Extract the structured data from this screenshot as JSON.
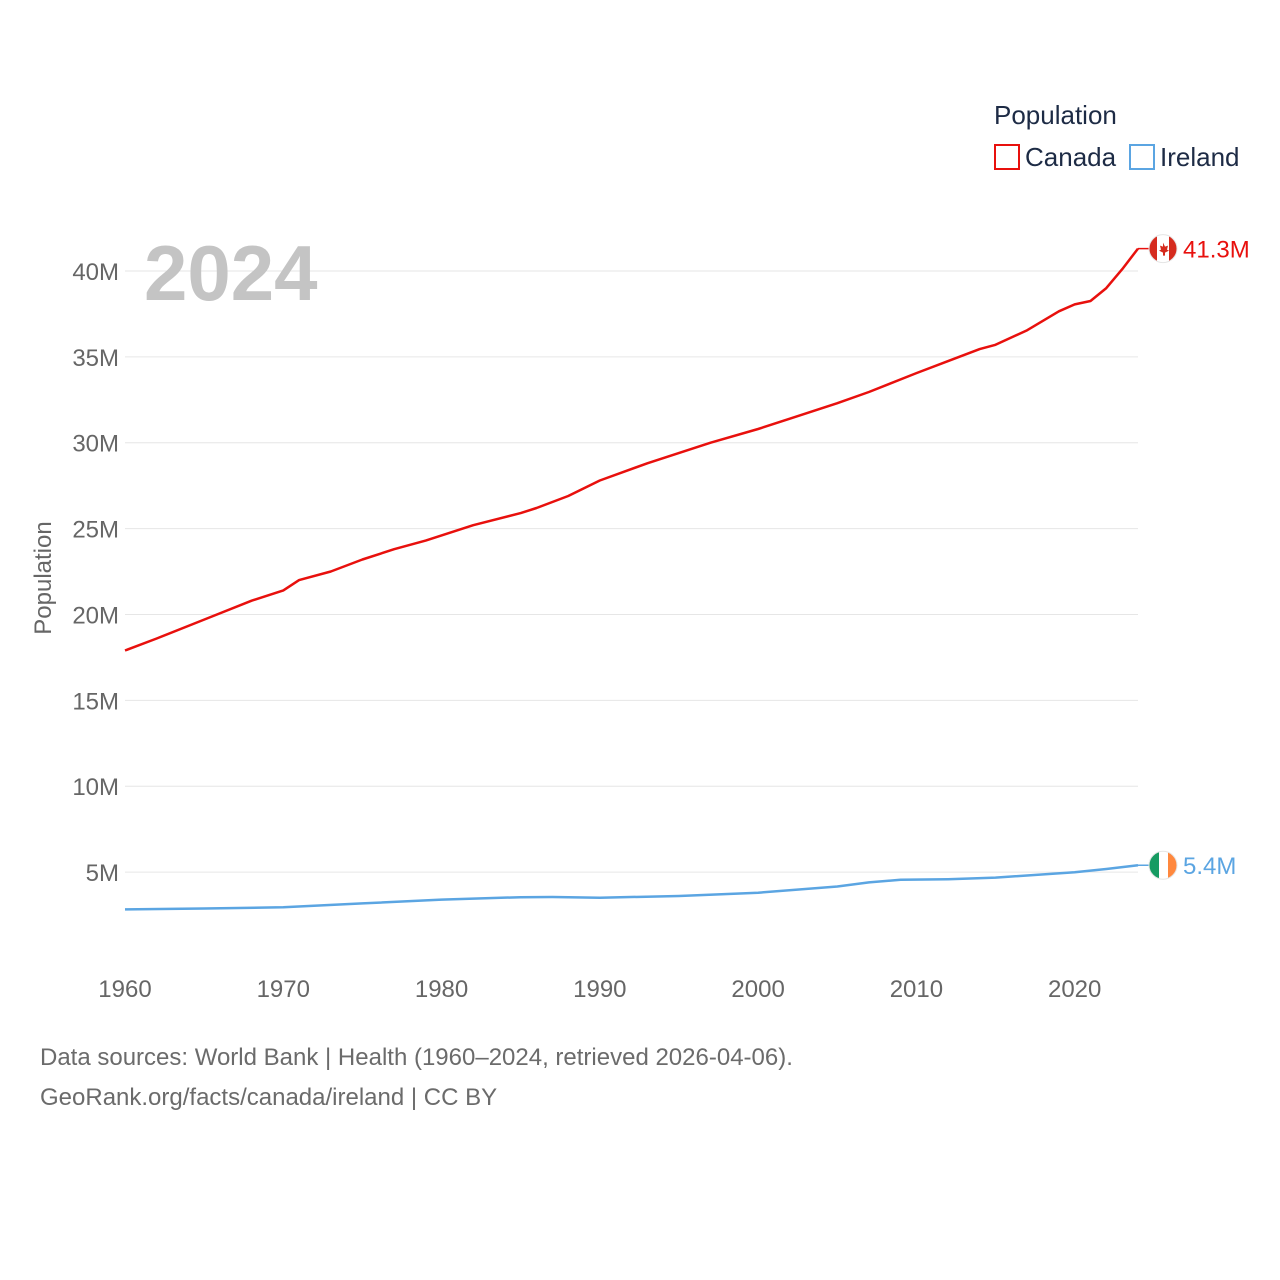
{
  "chart_data": {
    "type": "line",
    "title": "",
    "ylabel": "Population",
    "xlabel": "",
    "current_year": "2024",
    "legend": {
      "title": "Population",
      "position": "top-right"
    },
    "xlim": [
      1960,
      2024
    ],
    "ylim": [
      0,
      42500000
    ],
    "x_ticks": [
      1960,
      1970,
      1980,
      1990,
      2000,
      2010,
      2020
    ],
    "x_tick_labels": [
      "1960",
      "1970",
      "1980",
      "1990",
      "2000",
      "2010",
      "2020"
    ],
    "y_ticks": [
      5000000,
      10000000,
      15000000,
      20000000,
      25000000,
      30000000,
      35000000,
      40000000
    ],
    "y_tick_labels": [
      "5M",
      "10M",
      "15M",
      "20M",
      "25M",
      "30M",
      "35M",
      "40M"
    ],
    "series": [
      {
        "name": "Canada",
        "color": "#e8100d",
        "end_label": "41.3M",
        "flag": "canada-flag",
        "points": [
          [
            1960,
            17900000
          ],
          [
            1962,
            18600000
          ],
          [
            1965,
            19700000
          ],
          [
            1968,
            20800000
          ],
          [
            1970,
            21400000
          ],
          [
            1971,
            22000000
          ],
          [
            1973,
            22500000
          ],
          [
            1975,
            23200000
          ],
          [
            1977,
            23800000
          ],
          [
            1979,
            24300000
          ],
          [
            1982,
            25200000
          ],
          [
            1985,
            25900000
          ],
          [
            1986,
            26200000
          ],
          [
            1988,
            26900000
          ],
          [
            1990,
            27800000
          ],
          [
            1993,
            28800000
          ],
          [
            1997,
            30000000
          ],
          [
            2000,
            30800000
          ],
          [
            2002,
            31400000
          ],
          [
            2005,
            32300000
          ],
          [
            2007,
            32950000
          ],
          [
            2010,
            34050000
          ],
          [
            2012,
            34750000
          ],
          [
            2014,
            35450000
          ],
          [
            2015,
            35700000
          ],
          [
            2017,
            36550000
          ],
          [
            2019,
            37650000
          ],
          [
            2020,
            38050000
          ],
          [
            2021,
            38250000
          ],
          [
            2022,
            39000000
          ],
          [
            2023,
            40100000
          ],
          [
            2024,
            41300000
          ]
        ]
      },
      {
        "name": "Ireland",
        "color": "#5ba5e2",
        "end_label": "5.4M",
        "flag": "ireland-flag",
        "points": [
          [
            1960,
            2830000
          ],
          [
            1965,
            2880000
          ],
          [
            1970,
            2950000
          ],
          [
            1975,
            3180000
          ],
          [
            1980,
            3400000
          ],
          [
            1985,
            3540000
          ],
          [
            1987,
            3550000
          ],
          [
            1990,
            3510000
          ],
          [
            1995,
            3610000
          ],
          [
            2000,
            3800000
          ],
          [
            2005,
            4160000
          ],
          [
            2007,
            4400000
          ],
          [
            2009,
            4550000
          ],
          [
            2012,
            4590000
          ],
          [
            2015,
            4680000
          ],
          [
            2020,
            4990000
          ],
          [
            2022,
            5180000
          ],
          [
            2024,
            5400000
          ]
        ]
      }
    ]
  },
  "footer": {
    "line1": "Data sources: World Bank | Health (1960–2024, retrieved 2026-04-06).",
    "line2": "GeoRank.org/facts/canada/ireland | CC BY"
  }
}
